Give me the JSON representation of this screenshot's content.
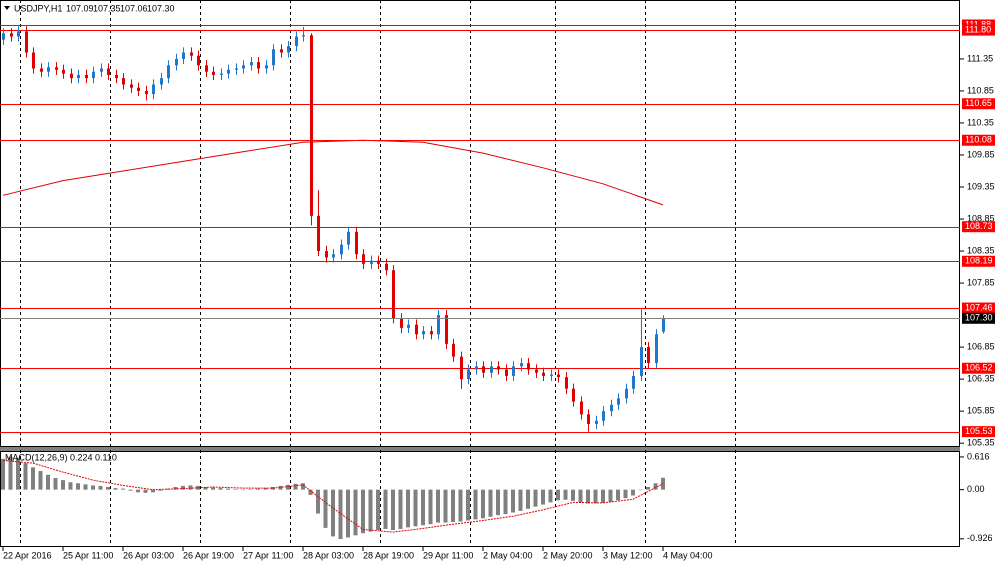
{
  "chart_data": {
    "type": "candlestick",
    "header": {
      "symbol": "USDJPY,H1",
      "ohlc_labels": [
        "107.09",
        "107.35",
        "107.06",
        "107.30"
      ]
    },
    "up_color": "#1f77d0",
    "down_color": "#e00000",
    "xlim": [
      -0.4,
      127.6
    ],
    "xticks": [
      {
        "value": 0,
        "label": "22 Apr 2016"
      },
      {
        "value": 8,
        "label": "25 Apr 11:00"
      },
      {
        "value": 16,
        "label": "26 Apr 03:00"
      },
      {
        "value": 24,
        "label": "26 Apr 19:00"
      },
      {
        "value": 32,
        "label": "27 Apr 11:00"
      },
      {
        "value": 40,
        "label": "28 Apr 03:00"
      },
      {
        "value": 48,
        "label": "28 Apr 19:00"
      },
      {
        "value": 56,
        "label": "29 Apr 11:00"
      },
      {
        "value": 64,
        "label": "2 May 04:00"
      },
      {
        "value": 72,
        "label": "2 May 20:00"
      },
      {
        "value": 80,
        "label": "3 May 12:00"
      },
      {
        "value": 88,
        "label": "4 May 04:00"
      }
    ],
    "period_separators": [
      2.3,
      14.3,
      26.3,
      38.3,
      50.3,
      62.3,
      73.6,
      85.6,
      97.6
    ],
    "ylim": [
      105.29,
      112.27
    ],
    "yticks": [
      111.35,
      110.85,
      110.35,
      109.85,
      109.35,
      108.85,
      108.35,
      107.85,
      106.85,
      106.35,
      105.85,
      105.35
    ],
    "levels": [
      111.88,
      {
        "value": 111.8,
        "label": "111.80"
      },
      110.65,
      110.08,
      108.73,
      108.19,
      107.46,
      106.52,
      105.53
    ],
    "level_color": "#ff0000",
    "current_price": {
      "value": 107.3,
      "label": "107.30"
    },
    "open": [
      111.65,
      111.75,
      111.7,
      111.78,
      111.45,
      111.2,
      111.15,
      111.22,
      111.18,
      111.12,
      111.05,
      111.1,
      111.05,
      111.15,
      111.2,
      111.1,
      111.05,
      110.95,
      110.9,
      110.85,
      110.8,
      110.95,
      111.05,
      111.25,
      111.35,
      111.45,
      111.4,
      111.25,
      111.15,
      111.1,
      111.12,
      111.18,
      111.2,
      111.25,
      111.3,
      111.2,
      111.25,
      111.5,
      111.45,
      111.55,
      111.7,
      111.72,
      108.9,
      108.35,
      108.25,
      108.3,
      108.45,
      108.65,
      108.3,
      108.15,
      108.2,
      108.15,
      108.05,
      107.3,
      107.15,
      107.2,
      107.05,
      107.1,
      107.05,
      107.35,
      106.9,
      106.7,
      106.35,
      106.5,
      106.55,
      106.45,
      106.55,
      106.5,
      106.4,
      106.55,
      106.6,
      106.5,
      106.45,
      106.4,
      106.42,
      106.38,
      106.2,
      106.0,
      105.8,
      105.65,
      105.7,
      105.85,
      105.95,
      106.05,
      106.2,
      106.4,
      106.85,
      106.6,
      107.09
    ],
    "high": [
      111.83,
      111.83,
      111.86,
      111.86,
      111.53,
      111.28,
      111.3,
      111.3,
      111.26,
      111.2,
      111.18,
      111.18,
      111.23,
      111.28,
      111.28,
      111.18,
      111.13,
      111.03,
      110.98,
      110.93,
      111.03,
      111.13,
      111.33,
      111.43,
      111.53,
      111.53,
      111.48,
      111.33,
      111.23,
      111.2,
      111.26,
      111.28,
      111.33,
      111.38,
      111.38,
      111.33,
      111.58,
      111.58,
      111.63,
      111.78,
      111.85,
      111.75,
      109.3,
      108.43,
      108.38,
      108.53,
      108.73,
      108.73,
      108.38,
      108.28,
      108.28,
      108.23,
      108.13,
      107.38,
      107.28,
      107.28,
      107.18,
      107.18,
      107.43,
      107.43,
      106.98,
      106.78,
      106.58,
      106.63,
      106.63,
      106.63,
      106.63,
      106.58,
      106.63,
      106.68,
      106.68,
      106.58,
      106.53,
      106.5,
      106.5,
      106.46,
      106.28,
      106.08,
      105.88,
      105.78,
      105.93,
      106.03,
      106.13,
      106.28,
      106.48,
      107.46,
      106.93,
      107.13,
      107.35
    ],
    "low": [
      111.57,
      111.62,
      111.62,
      111.37,
      111.12,
      111.07,
      111.07,
      111.1,
      111.04,
      110.97,
      110.97,
      110.97,
      110.97,
      111.07,
      111.02,
      110.97,
      110.87,
      110.82,
      110.77,
      110.7,
      110.72,
      110.87,
      110.97,
      111.17,
      111.27,
      111.32,
      111.17,
      111.07,
      111.02,
      111.02,
      111.04,
      111.1,
      111.12,
      111.17,
      111.12,
      111.12,
      111.17,
      111.37,
      111.37,
      111.47,
      111.62,
      108.75,
      108.27,
      108.17,
      108.17,
      108.22,
      108.37,
      108.22,
      108.07,
      108.07,
      108.07,
      107.97,
      107.22,
      107.07,
      107.07,
      106.97,
      106.97,
      106.97,
      106.97,
      106.82,
      106.62,
      106.2,
      106.27,
      106.42,
      106.37,
      106.37,
      106.42,
      106.32,
      106.32,
      106.47,
      106.42,
      106.37,
      106.32,
      106.32,
      106.3,
      106.12,
      105.92,
      105.72,
      105.53,
      105.57,
      105.62,
      105.77,
      105.87,
      105.97,
      106.12,
      106.32,
      106.52,
      106.52,
      107.06
    ],
    "close": [
      111.75,
      111.7,
      111.78,
      111.45,
      111.2,
      111.15,
      111.22,
      111.18,
      111.12,
      111.05,
      111.1,
      111.05,
      111.15,
      111.2,
      111.1,
      111.05,
      110.95,
      110.9,
      110.85,
      110.8,
      110.95,
      111.05,
      111.25,
      111.35,
      111.45,
      111.4,
      111.25,
      111.15,
      111.1,
      111.12,
      111.18,
      111.2,
      111.25,
      111.3,
      111.2,
      111.25,
      111.5,
      111.45,
      111.55,
      111.7,
      111.72,
      108.9,
      108.35,
      108.25,
      108.3,
      108.45,
      108.65,
      108.3,
      108.15,
      108.2,
      108.15,
      108.05,
      107.3,
      107.15,
      107.2,
      107.05,
      107.1,
      107.05,
      107.35,
      106.9,
      106.7,
      106.35,
      106.5,
      106.55,
      106.45,
      106.55,
      106.5,
      106.4,
      106.55,
      106.6,
      106.5,
      106.45,
      106.4,
      106.42,
      106.38,
      106.2,
      106.0,
      105.8,
      105.65,
      105.7,
      105.85,
      105.95,
      106.05,
      106.2,
      106.4,
      106.85,
      106.6,
      107.05,
      107.3
    ],
    "moving_average": {
      "color": "#e00000",
      "x": [
        0,
        8,
        16,
        24,
        32,
        40,
        48,
        56,
        64,
        72,
        80,
        88
      ],
      "values": [
        109.22,
        109.45,
        109.6,
        109.75,
        109.9,
        110.05,
        110.08,
        110.05,
        109.88,
        109.65,
        109.4,
        109.07
      ]
    },
    "indicator": {
      "type": "macd",
      "title": "MACD(12,26,9) 0.224 0.110",
      "ylim": [
        -1.08,
        0.728
      ],
      "yticks": [
        0.616,
        {
          "value": 0,
          "label": "0.00"
        },
        -0.926
      ],
      "histogram_color": "#808080",
      "signal_color": "#e00000",
      "histogram": [
        0.58,
        0.62,
        0.6,
        0.5,
        0.42,
        0.35,
        0.28,
        0.22,
        0.18,
        0.14,
        0.12,
        0.1,
        0.08,
        0.07,
        0.05,
        0.03,
        0.02,
        -0.02,
        -0.05,
        -0.06,
        -0.05,
        -0.02,
        0.02,
        0.05,
        0.07,
        0.08,
        0.07,
        0.05,
        0.04,
        0.03,
        0.02,
        0.01,
        0.0,
        0.01,
        0.02,
        0.03,
        0.05,
        0.07,
        0.09,
        0.11,
        0.12,
        -0.1,
        -0.45,
        -0.72,
        -0.88,
        -0.93,
        -0.9,
        -0.86,
        -0.82,
        -0.79,
        -0.76,
        -0.74,
        -0.76,
        -0.74,
        -0.71,
        -0.69,
        -0.67,
        -0.65,
        -0.62,
        -0.62,
        -0.61,
        -0.6,
        -0.58,
        -0.56,
        -0.54,
        -0.51,
        -0.48,
        -0.46,
        -0.43,
        -0.4,
        -0.36,
        -0.32,
        -0.28,
        -0.24,
        -0.2,
        -0.19,
        -0.21,
        -0.24,
        -0.26,
        -0.26,
        -0.25,
        -0.23,
        -0.2,
        -0.16,
        -0.11,
        0.0,
        0.05,
        0.12,
        0.224
      ],
      "signal": {
        "x": [
          0,
          4,
          8,
          12,
          16,
          20,
          24,
          28,
          32,
          36,
          40,
          44,
          48,
          52,
          56,
          60,
          64,
          68,
          72,
          76,
          80,
          84,
          88
        ],
        "values": [
          0.55,
          0.5,
          0.33,
          0.18,
          0.08,
          0.0,
          0.02,
          0.05,
          0.03,
          0.03,
          0.09,
          -0.35,
          -0.75,
          -0.8,
          -0.73,
          -0.65,
          -0.58,
          -0.5,
          -0.38,
          -0.24,
          -0.25,
          -0.18,
          0.11
        ]
      }
    }
  }
}
